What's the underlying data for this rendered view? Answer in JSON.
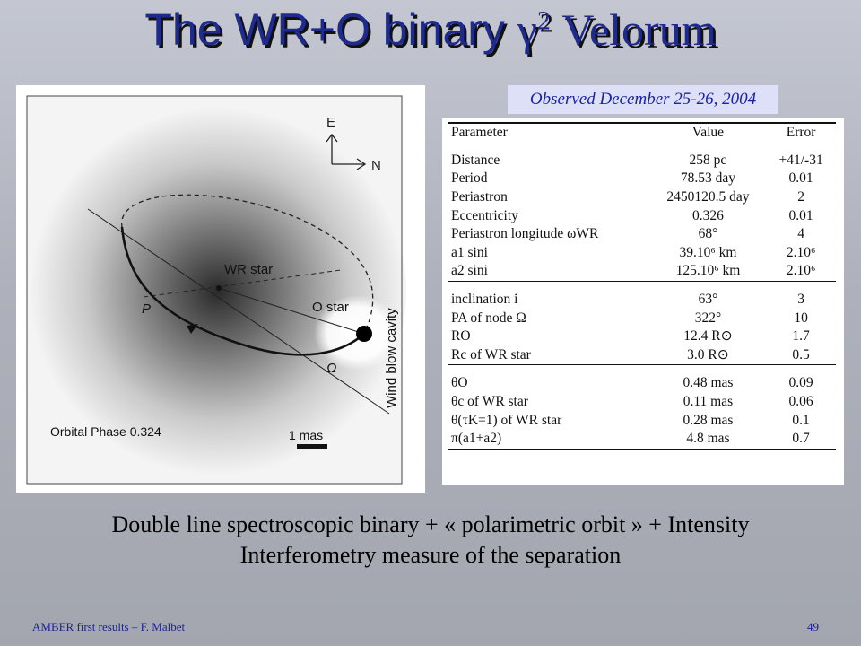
{
  "title": {
    "text": "The WR+O binary ",
    "greek": "γ",
    "sup": "2",
    "rest": " Velorum"
  },
  "observed_note": "Observed December 25-26, 2004",
  "figure": {
    "compass_e": "E",
    "compass_n": "N",
    "wr_label": "WR star",
    "o_label": "O star",
    "p_label": "P",
    "omega_label": "Ω",
    "cavity_label": "Wind blow cavity",
    "phase_label": "Orbital Phase 0.324",
    "scale_label": "1 mas"
  },
  "table": {
    "headers": [
      "Parameter",
      "Value",
      "Error"
    ],
    "groups": [
      [
        {
          "p": "Distance",
          "v": "258 pc",
          "e": "+41/-31"
        },
        {
          "p": "Period",
          "v": "78.53 day",
          "e": "0.01"
        },
        {
          "p": "Periastron",
          "v": "2450120.5 day",
          "e": "2"
        },
        {
          "p": "Eccentricity",
          "v": "0.326",
          "e": "0.01"
        },
        {
          "p": "Periastron longitude ωWR",
          "v": "68°",
          "e": "4"
        },
        {
          "p": "a1 sini",
          "v": "39.10⁶ km",
          "e": "2.10⁶"
        },
        {
          "p": "a2 sini",
          "v": "125.10⁶ km",
          "e": "2.10⁶"
        }
      ],
      [
        {
          "p": "inclination i",
          "v": "63°",
          "e": "3"
        },
        {
          "p": "PA of node Ω",
          "v": "322°",
          "e": "10"
        },
        {
          "p": "RO",
          "v": "12.4 R⊙",
          "e": "1.7"
        },
        {
          "p": "Rc of WR star",
          "v": "3.0 R⊙",
          "e": "0.5"
        }
      ],
      [
        {
          "p": "θO",
          "v": "0.48 mas",
          "e": "0.09"
        },
        {
          "p": "θc of WR star",
          "v": "0.11 mas",
          "e": "0.06"
        },
        {
          "p": "θ(τK=1) of WR star",
          "v": "0.28 mas",
          "e": "0.1"
        },
        {
          "p": "π(a1+a2)",
          "v": "4.8 mas",
          "e": "0.7"
        }
      ]
    ]
  },
  "caption": {
    "line1": "Double line spectroscopic binary + « polarimetric orbit » + Intensity",
    "line2": "Interferometry measure of the separation"
  },
  "footer": {
    "left": "AMBER first results – F. Malbet",
    "page": "49"
  }
}
